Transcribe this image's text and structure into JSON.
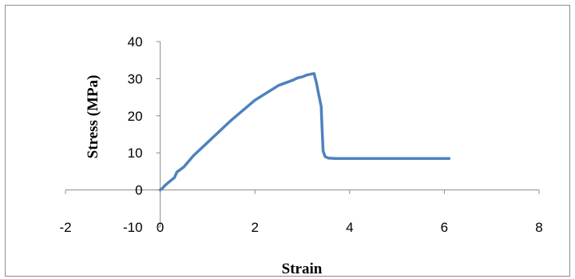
{
  "chart_data": {
    "type": "line",
    "title": "",
    "xlabel": "Strain",
    "ylabel": "Stress (MPa)",
    "xlim": [
      -2,
      8
    ],
    "ylim": [
      -10,
      40
    ],
    "x_ticks": [
      -2,
      0,
      2,
      4,
      6,
      8
    ],
    "y_ticks": [
      -10,
      0,
      10,
      20,
      30,
      40
    ],
    "x_tick_labels": [
      "-2",
      "0",
      "2",
      "4",
      "6",
      "8"
    ],
    "y_tick_labels": [
      "-10",
      "0",
      "10",
      "20",
      "30",
      "40"
    ],
    "grid": false,
    "legend": "none",
    "series_color": "#4F81BD",
    "series": [
      {
        "x": [
          0,
          0.05,
          0.1,
          0.2,
          0.3,
          0.35,
          0.5,
          0.7,
          1.0,
          1.5,
          2.0,
          2.5,
          2.8,
          2.9,
          3.0,
          3.1,
          3.25,
          3.3,
          3.35,
          3.4,
          3.42,
          3.44,
          3.48,
          3.55,
          3.7,
          4.0,
          5.0,
          6.1
        ],
        "y": [
          0,
          0.5,
          1.2,
          2.3,
          3.3,
          4.8,
          6.2,
          9.2,
          12.8,
          18.8,
          24.2,
          28.2,
          29.6,
          30.2,
          30.5,
          31.0,
          31.4,
          28.8,
          25.5,
          22.5,
          16.0,
          10.5,
          9.0,
          8.6,
          8.5,
          8.5,
          8.5,
          8.5
        ]
      }
    ]
  }
}
